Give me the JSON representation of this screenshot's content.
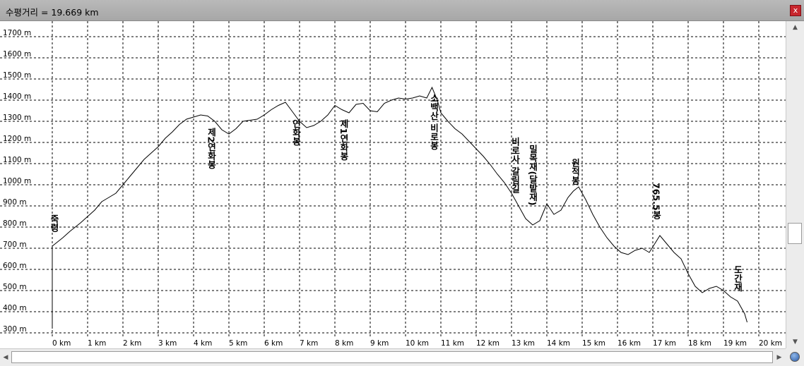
{
  "window": {
    "title": "수평거리 = 19.669 km",
    "close_label": "x"
  },
  "scroll": {
    "up_label": "▲",
    "down_label": "▼",
    "left_label": "◀",
    "right_label": "▶"
  },
  "chart_data": {
    "type": "line",
    "grid": true,
    "xlim": [
      0,
      20
    ],
    "ylim": [
      300,
      1700
    ],
    "x_ticks": [
      0,
      1,
      2,
      3,
      4,
      5,
      6,
      7,
      8,
      9,
      10,
      11,
      12,
      13,
      14,
      15,
      16,
      17,
      18,
      19,
      20
    ],
    "x_tick_labels": [
      "0 km",
      "1 km",
      "2 km",
      "3 km",
      "4 km",
      "5 km",
      "6 km",
      "7 km",
      "8 km",
      "9 km",
      "10 km",
      "11 km",
      "12 km",
      "13 km",
      "14 km",
      "15 km",
      "16 km",
      "17 km",
      "18 km",
      "19 km",
      "20 km"
    ],
    "y_ticks": [
      300,
      400,
      500,
      600,
      700,
      800,
      900,
      1000,
      1100,
      1200,
      1300,
      1400,
      1500,
      1600,
      1700
    ],
    "y_tick_labels": [
      "300 m",
      "400 m",
      "500 m",
      "600 m",
      "700 m",
      "800 m",
      "900 m",
      "1000 m",
      "1100 m",
      "1200 m",
      "1300 m",
      "1400 m",
      "1500 m",
      "1600 m",
      "1700 m"
    ],
    "series": [
      {
        "color": "#000000",
        "x": [
          0,
          0,
          0.15,
          0.3,
          0.5,
          0.8,
          1.0,
          1.2,
          1.4,
          1.6,
          1.8,
          2.0,
          2.2,
          2.4,
          2.6,
          2.8,
          3.0,
          3.2,
          3.4,
          3.6,
          3.8,
          4.0,
          4.2,
          4.4,
          4.6,
          4.8,
          5.0,
          5.2,
          5.4,
          5.6,
          5.8,
          6.0,
          6.2,
          6.4,
          6.6,
          6.8,
          7.0,
          7.2,
          7.4,
          7.6,
          7.8,
          8.0,
          8.2,
          8.4,
          8.6,
          8.8,
          9.0,
          9.2,
          9.4,
          9.6,
          9.8,
          10.0,
          10.2,
          10.4,
          10.6,
          10.75,
          10.9,
          11.0,
          11.2,
          11.4,
          11.6,
          11.8,
          12.0,
          12.2,
          12.4,
          12.6,
          12.8,
          13.0,
          13.2,
          13.4,
          13.6,
          13.8,
          13.9,
          14.0,
          14.2,
          14.4,
          14.6,
          14.75,
          14.9,
          15.1,
          15.3,
          15.5,
          15.7,
          15.9,
          16.1,
          16.3,
          16.5,
          16.7,
          16.9,
          17.05,
          17.2,
          17.4,
          17.6,
          17.8,
          18.0,
          18.2,
          18.4,
          18.6,
          18.8,
          19.0,
          19.2,
          19.4,
          19.6,
          19.67
        ],
        "y": [
          320,
          710,
          730,
          750,
          780,
          820,
          850,
          880,
          920,
          940,
          960,
          1000,
          1040,
          1080,
          1120,
          1150,
          1180,
          1220,
          1250,
          1285,
          1310,
          1320,
          1330,
          1325,
          1300,
          1260,
          1240,
          1265,
          1300,
          1305,
          1310,
          1330,
          1355,
          1375,
          1390,
          1345,
          1300,
          1270,
          1280,
          1300,
          1330,
          1375,
          1355,
          1340,
          1380,
          1385,
          1350,
          1345,
          1385,
          1400,
          1410,
          1405,
          1410,
          1420,
          1410,
          1460,
          1400,
          1340,
          1300,
          1265,
          1240,
          1205,
          1170,
          1135,
          1095,
          1050,
          1010,
          960,
          900,
          840,
          810,
          830,
          870,
          910,
          860,
          880,
          940,
          970,
          990,
          930,
          860,
          800,
          750,
          710,
          680,
          670,
          690,
          700,
          680,
          720,
          760,
          720,
          680,
          650,
          580,
          520,
          490,
          510,
          520,
          500,
          470,
          450,
          390,
          350
        ]
      }
    ],
    "annotations": [
      {
        "text": "죽령",
        "x": 0.05,
        "y": 860
      },
      {
        "text": "제2연화봉",
        "x": 4.5,
        "y": 1270
      },
      {
        "text": "연화봉",
        "x": 6.9,
        "y": 1310
      },
      {
        "text": "제1연화봉",
        "x": 8.25,
        "y": 1310
      },
      {
        "text": "소백산 비로봉",
        "x": 10.8,
        "y": 1430
      },
      {
        "text": "비로사 갈림길",
        "x": 13.1,
        "y": 1225
      },
      {
        "text": "밀목재(달밭재)",
        "x": 13.6,
        "y": 1190
      },
      {
        "text": "원적봉",
        "x": 14.8,
        "y": 1125
      },
      {
        "text": "765.5봉",
        "x": 17.1,
        "y": 1010
      },
      {
        "text": "도간재",
        "x": 19.4,
        "y": 620
      }
    ]
  }
}
